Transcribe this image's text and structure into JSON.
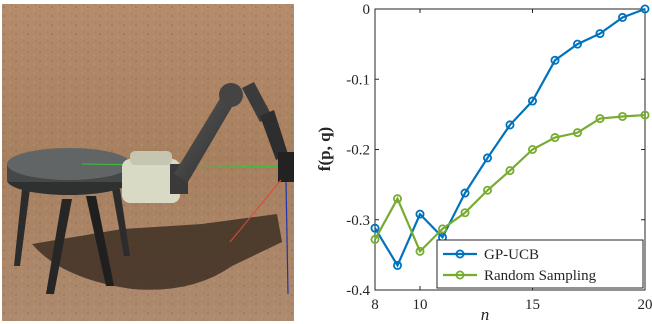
{
  "photo": {
    "subject": "robot-arm-on-tripod-platform"
  },
  "chart_data": {
    "type": "line",
    "title": "",
    "xlabel": "n",
    "ylabel": "f(p, q)",
    "xlim": [
      8,
      20
    ],
    "ylim": [
      -0.4,
      0
    ],
    "xticks": [
      8,
      10,
      15,
      20
    ],
    "yticks": [
      0,
      -0.1,
      -0.2,
      -0.3,
      -0.4
    ],
    "xtick_labels": [
      "8",
      "10",
      "15",
      "20"
    ],
    "ytick_labels": [
      "0",
      "-0.1",
      "-0.2",
      "-0.3",
      "-0.4"
    ],
    "grid": false,
    "legend_position": "bottom-right",
    "x": [
      8,
      9,
      10,
      11,
      12,
      13,
      14,
      15,
      16,
      17,
      18,
      19,
      20
    ],
    "series": [
      {
        "name": "GP-UCB",
        "color": "#0072BD",
        "values": [
          -0.312,
          -0.365,
          -0.292,
          -0.325,
          -0.262,
          -0.212,
          -0.165,
          -0.131,
          -0.073,
          -0.05,
          -0.035,
          -0.012,
          0.0
        ]
      },
      {
        "name": "Random Sampling",
        "color": "#77AC30",
        "values": [
          -0.328,
          -0.27,
          -0.345,
          -0.313,
          -0.29,
          -0.258,
          -0.23,
          -0.2,
          -0.183,
          -0.176,
          -0.156,
          -0.153,
          -0.151
        ]
      }
    ]
  }
}
